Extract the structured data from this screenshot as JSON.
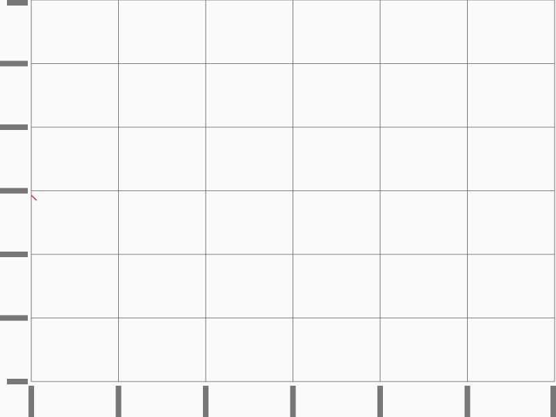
{
  "colors": {
    "background": "#fafafa",
    "grid": "#555555",
    "tick": "#777777",
    "series": "#e0245e"
  },
  "chart_data": {
    "type": "line",
    "title": "",
    "xlabel": "",
    "ylabel": "",
    "grid": true,
    "legend": "none",
    "xlim": [
      0,
      6
    ],
    "ylim": [
      0,
      6
    ],
    "x_ticks": [
      0,
      1,
      2,
      3,
      4,
      5,
      6
    ],
    "y_ticks": [
      0,
      1,
      2,
      3,
      4,
      5,
      6
    ],
    "series": [
      {
        "x": [
          0,
          0.06
        ],
        "y": [
          2.93,
          2.85
        ]
      }
    ]
  }
}
